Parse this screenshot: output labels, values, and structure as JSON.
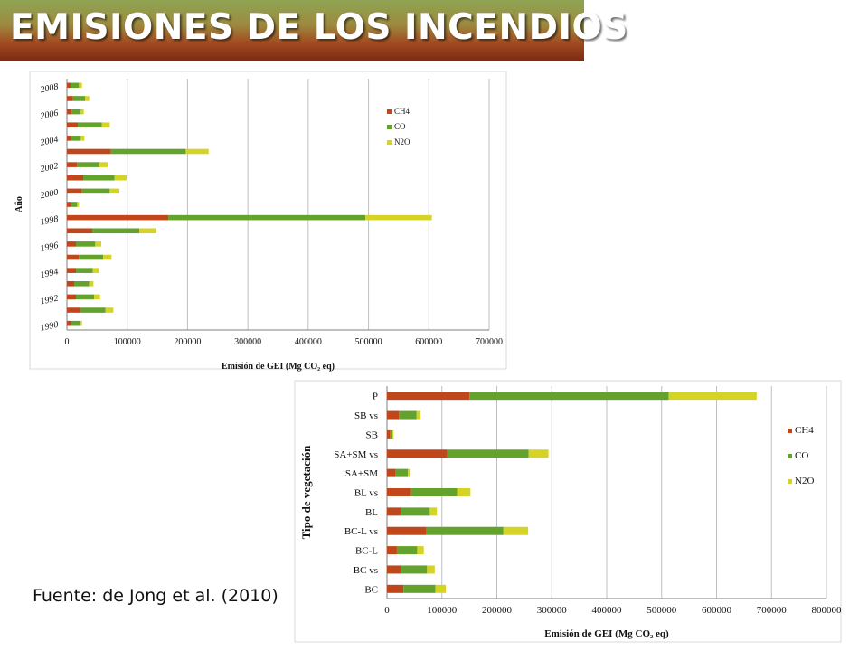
{
  "title": "EMISIONES DE LOS INCENDIOS",
  "source": "Fuente: de Jong et al. (2010)",
  "colors": {
    "CH4": "#c0471c",
    "CO": "#64a22e",
    "N2O": "#d6d327"
  },
  "chart_data": [
    {
      "type": "bar",
      "orientation": "horizontal",
      "stacked": true,
      "ylabel": "Año",
      "xlabel": "Emisión de GEI (Mg CO₂ eq)",
      "xlim": [
        0,
        700000
      ],
      "xticks": [
        "0",
        "100000",
        "200000",
        "300000",
        "400000",
        "500000",
        "600000",
        "700000"
      ],
      "xtick_values": [
        0,
        100000,
        200000,
        300000,
        400000,
        500000,
        600000,
        700000
      ],
      "grid": true,
      "legend_position": "top-right",
      "tick_labels": [
        "1990",
        "1992",
        "1994",
        "1996",
        "1998",
        "2000",
        "2002",
        "2004",
        "2006",
        "2008"
      ],
      "categories": [
        "1990",
        "1991",
        "1992",
        "1993",
        "1994",
        "1995",
        "1996",
        "1997",
        "1998",
        "1999",
        "2000",
        "2001",
        "2002",
        "2003",
        "2004",
        "2005",
        "2006",
        "2007",
        "2008"
      ],
      "series": [
        {
          "name": "CH4",
          "values": [
            7000,
            22000,
            15000,
            12000,
            15000,
            20000,
            15000,
            42000,
            168000,
            7000,
            25000,
            27000,
            17000,
            73000,
            7000,
            18000,
            8000,
            10000,
            6000
          ]
        },
        {
          "name": "CO",
          "values": [
            15000,
            42000,
            30000,
            25000,
            28000,
            40000,
            32000,
            78000,
            327000,
            10000,
            46000,
            52000,
            37000,
            124000,
            16000,
            40000,
            15000,
            20000,
            14000
          ]
        },
        {
          "name": "N2O",
          "values": [
            3000,
            13000,
            10000,
            7000,
            10000,
            14000,
            10000,
            28000,
            110000,
            3000,
            16000,
            20000,
            14000,
            38000,
            6000,
            13000,
            5000,
            7000,
            5000
          ]
        }
      ]
    },
    {
      "type": "bar",
      "orientation": "horizontal",
      "stacked": true,
      "ylabel": "Tipo de vegetación",
      "xlabel": "Emisión de GEI (Mg CO₂ eq)",
      "xlim": [
        0,
        800000
      ],
      "xticks": [
        "0",
        "100000",
        "200000",
        "300000",
        "400000",
        "500000",
        "600000",
        "700000",
        "800000"
      ],
      "xtick_values": [
        0,
        100000,
        200000,
        300000,
        400000,
        500000,
        600000,
        700000,
        800000
      ],
      "grid": true,
      "legend_position": "right",
      "categories": [
        "BC",
        "BC vs",
        "BC-L",
        "BC-L vs",
        "BL",
        "BL vs",
        "SA+SM",
        "SA+SM vs",
        "SB",
        "SB vs",
        "P"
      ],
      "series": [
        {
          "name": "CH4",
          "values": [
            30000,
            25000,
            18000,
            72000,
            25000,
            44000,
            16000,
            110000,
            5000,
            22000,
            150000
          ]
        },
        {
          "name": "CO",
          "values": [
            58000,
            48000,
            37000,
            140000,
            53000,
            84000,
            22000,
            148000,
            5000,
            32000,
            363000
          ]
        },
        {
          "name": "N2O",
          "values": [
            19000,
            14000,
            12000,
            45000,
            13000,
            24000,
            5000,
            36000,
            2000,
            7000,
            160000
          ]
        }
      ]
    }
  ]
}
